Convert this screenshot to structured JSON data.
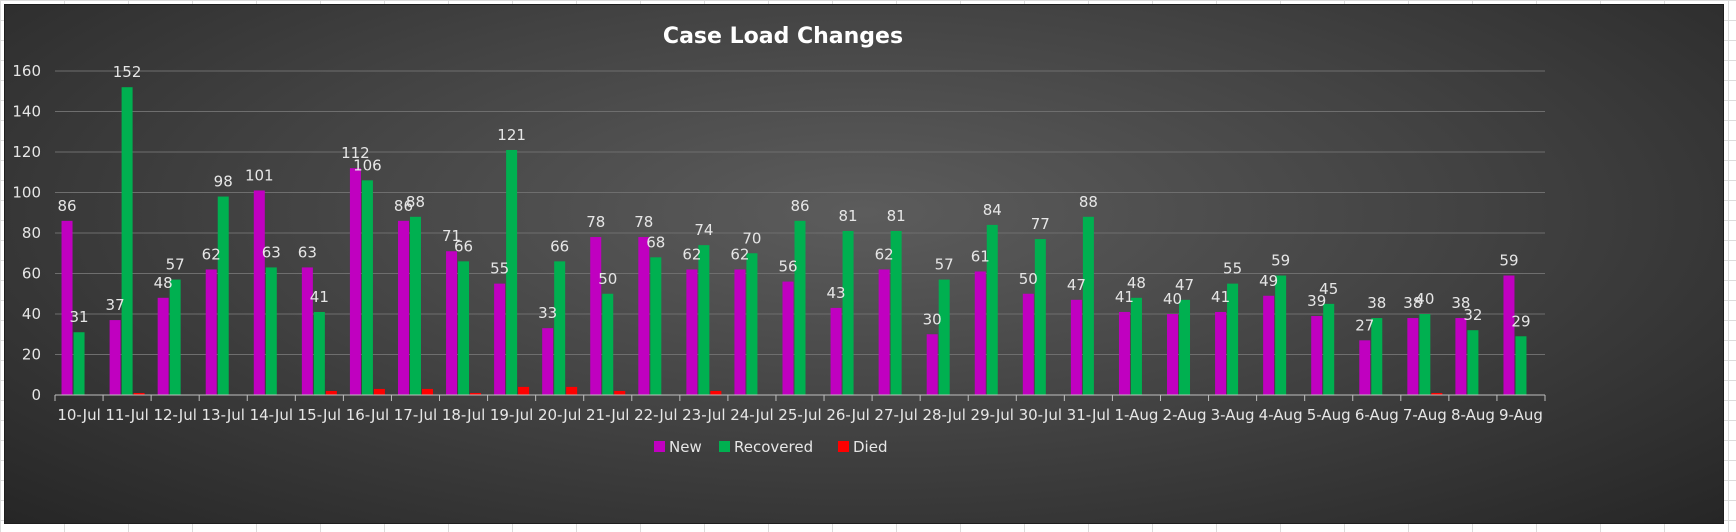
{
  "chart_data": {
    "type": "bar",
    "title": "Case Load Changes",
    "xlabel": "",
    "ylabel": "",
    "ylim": [
      0,
      160
    ],
    "yticks": [
      0,
      20,
      40,
      60,
      80,
      100,
      120,
      140,
      160
    ],
    "grid": true,
    "legend_position": "bottom",
    "categories": [
      "10-Jul",
      "11-Jul",
      "12-Jul",
      "13-Jul",
      "14-Jul",
      "15-Jul",
      "16-Jul",
      "17-Jul",
      "18-Jul",
      "19-Jul",
      "20-Jul",
      "21-Jul",
      "22-Jul",
      "23-Jul",
      "24-Jul",
      "25-Jul",
      "26-Jul",
      "27-Jul",
      "28-Jul",
      "29-Jul",
      "30-Jul",
      "31-Jul",
      "1-Aug",
      "2-Aug",
      "3-Aug",
      "4-Aug",
      "5-Aug",
      "6-Aug",
      "7-Aug",
      "8-Aug",
      "9-Aug"
    ],
    "series": [
      {
        "name": "New",
        "color": "#c000c0",
        "show_labels": true,
        "values": [
          86,
          37,
          48,
          62,
          101,
          63,
          112,
          86,
          71,
          55,
          33,
          78,
          78,
          62,
          62,
          56,
          43,
          62,
          30,
          61,
          50,
          47,
          41,
          40,
          41,
          49,
          39,
          27,
          38,
          38,
          59
        ]
      },
      {
        "name": "Recovered",
        "color": "#00b050",
        "show_labels": true,
        "values": [
          31,
          152,
          57,
          98,
          63,
          41,
          106,
          88,
          66,
          121,
          66,
          50,
          68,
          74,
          70,
          86,
          81,
          81,
          57,
          84,
          77,
          88,
          48,
          47,
          55,
          59,
          45,
          38,
          40,
          32,
          29
        ]
      },
      {
        "name": "Died",
        "color": "#ff0000",
        "show_labels": false,
        "values": [
          0,
          1,
          0,
          0,
          0,
          2,
          3,
          3,
          1,
          4,
          4,
          2,
          0,
          2,
          0,
          0,
          0,
          0,
          0,
          0,
          0,
          0,
          0,
          0,
          0,
          0,
          0,
          0,
          1,
          0,
          0
        ]
      }
    ]
  }
}
